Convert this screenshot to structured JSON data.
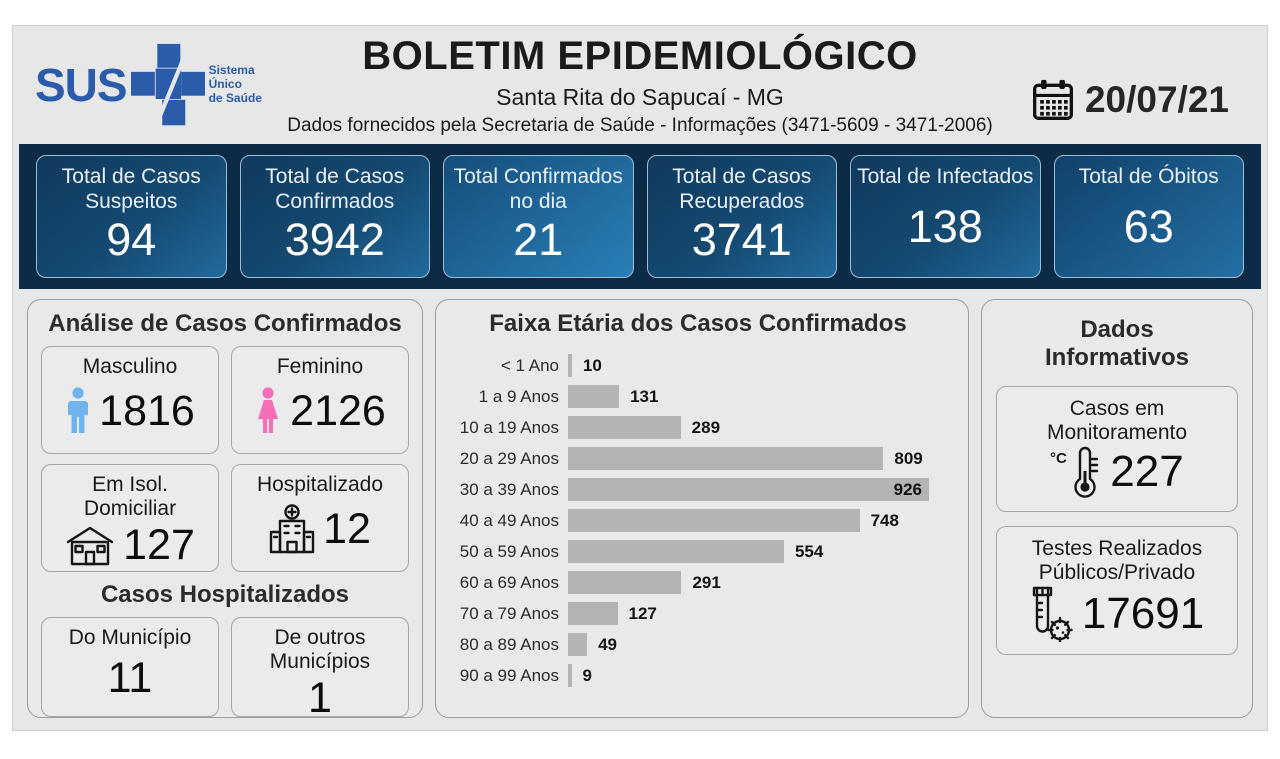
{
  "colors": {
    "board_bg": "#e7e7e7",
    "stats_bg": "#0c2b47",
    "stat_card_from": "#10395c",
    "stat_card_to": "#2575ab",
    "bar_fill": "#b4b4b4",
    "sus_blue": "#2a5caa",
    "male_icon": "#6fb3ef",
    "female_icon": "#f56fb8"
  },
  "header": {
    "logo_text": "SUS",
    "logo_tagline": [
      "Sistema",
      "Único",
      "de Saúde"
    ],
    "title": "BOLETIM EPIDEMIOLÓGICO",
    "subtitle": "Santa Rita do Sapucaí - MG",
    "info": "Dados fornecidos pela Secretaria de Saúde - Informações (3471-5609 - 3471-2006)",
    "date": "20/07/21"
  },
  "stats": {
    "items": [
      {
        "label": "Total de Casos Suspeitos",
        "value": "94"
      },
      {
        "label": "Total de Casos Confirmados",
        "value": "3942"
      },
      {
        "label": "Total Confirmados no dia",
        "value": "21"
      },
      {
        "label": "Total de Casos Recuperados",
        "value": "3741"
      },
      {
        "label": "Total de Infectados",
        "value": "138"
      },
      {
        "label": "Total de Óbitos",
        "value": "63"
      }
    ]
  },
  "analysis": {
    "title": "Análise de Casos Confirmados",
    "male": {
      "label": "Masculino",
      "value": "1816"
    },
    "female": {
      "label": "Feminino",
      "value": "2126"
    },
    "isolation": {
      "label": "Em Isol. Domiciliar",
      "value": "127"
    },
    "hospitalized": {
      "label": "Hospitalizado",
      "value": "12"
    },
    "subtitle": "Casos Hospitalizados",
    "municipality": {
      "label": "Do Município",
      "value": "11"
    },
    "other_municipalities": {
      "label": "De outros Municípios",
      "value": "1"
    }
  },
  "chart_data": {
    "type": "bar",
    "orientation": "horizontal",
    "title": "Faixa Etária dos Casos Confirmados",
    "categories": [
      "< 1 Ano",
      "1 a 9 Anos",
      "10 a 19 Anos",
      "20 a 29 Anos",
      "30 a 39 Anos",
      "40 a 49 Anos",
      "50 a 59 Anos",
      "60 a 69 Anos",
      "70 a 79 Anos",
      "80 a 89 Anos",
      "90 a 99 Anos"
    ],
    "values": [
      10,
      131,
      289,
      809,
      926,
      748,
      554,
      291,
      127,
      49,
      9
    ],
    "xlabel": "",
    "ylabel": "",
    "xlim": [
      0,
      980
    ],
    "grid": false,
    "legend": false,
    "data_labels": true
  },
  "info_panel": {
    "title": "Dados Informativos",
    "monitoring": {
      "label": "Casos em Monitoramento",
      "value": "227"
    },
    "tests": {
      "label": "Testes Realizados Públicos/Privado",
      "value": "17691"
    }
  }
}
